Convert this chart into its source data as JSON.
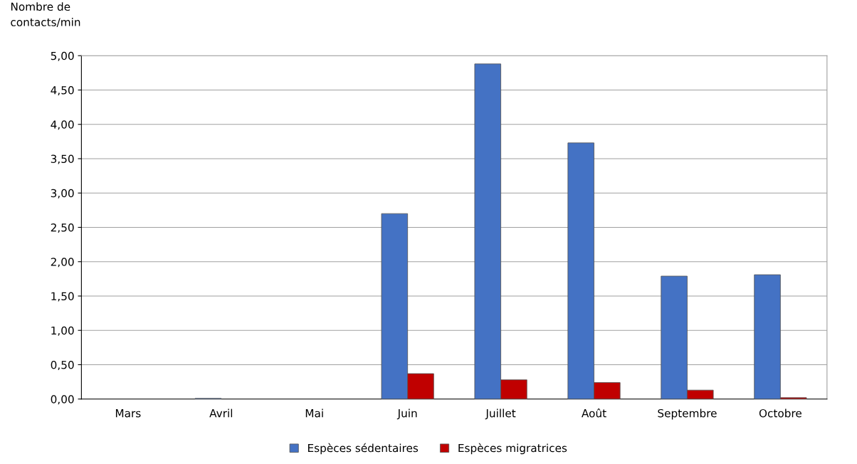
{
  "chart_data": {
    "type": "bar",
    "ylabel": "Nombre de\ncontacts/min",
    "categories": [
      "Mars",
      "Avril",
      "Mai",
      "Juin",
      "Juillet",
      "Août",
      "Septembre",
      "Octobre"
    ],
    "series": [
      {
        "name": "Espèces sédentaires",
        "color": "#4472c4",
        "values": [
          null,
          0.01,
          null,
          2.7,
          4.88,
          3.73,
          1.79,
          1.81
        ]
      },
      {
        "name": "Espèces migratrices",
        "color": "#c00000",
        "values": [
          null,
          null,
          null,
          0.37,
          0.28,
          0.24,
          0.13,
          0.02
        ]
      }
    ],
    "ylim": [
      0,
      5
    ],
    "yticks": [
      {
        "value": 0,
        "label": "0,00"
      },
      {
        "value": 0.5,
        "label": "0,50"
      },
      {
        "value": 1,
        "label": "1,00"
      },
      {
        "value": 1.5,
        "label": "1,50"
      },
      {
        "value": 2,
        "label": "2,00"
      },
      {
        "value": 2.5,
        "label": "2,50"
      },
      {
        "value": 3,
        "label": "3,00"
      },
      {
        "value": 3.5,
        "label": "3,50"
      },
      {
        "value": 4,
        "label": "4,00"
      },
      {
        "value": 4.5,
        "label": "4,50"
      },
      {
        "value": 5,
        "label": "5,00"
      }
    ],
    "grid": "y",
    "legend": "bottom"
  }
}
